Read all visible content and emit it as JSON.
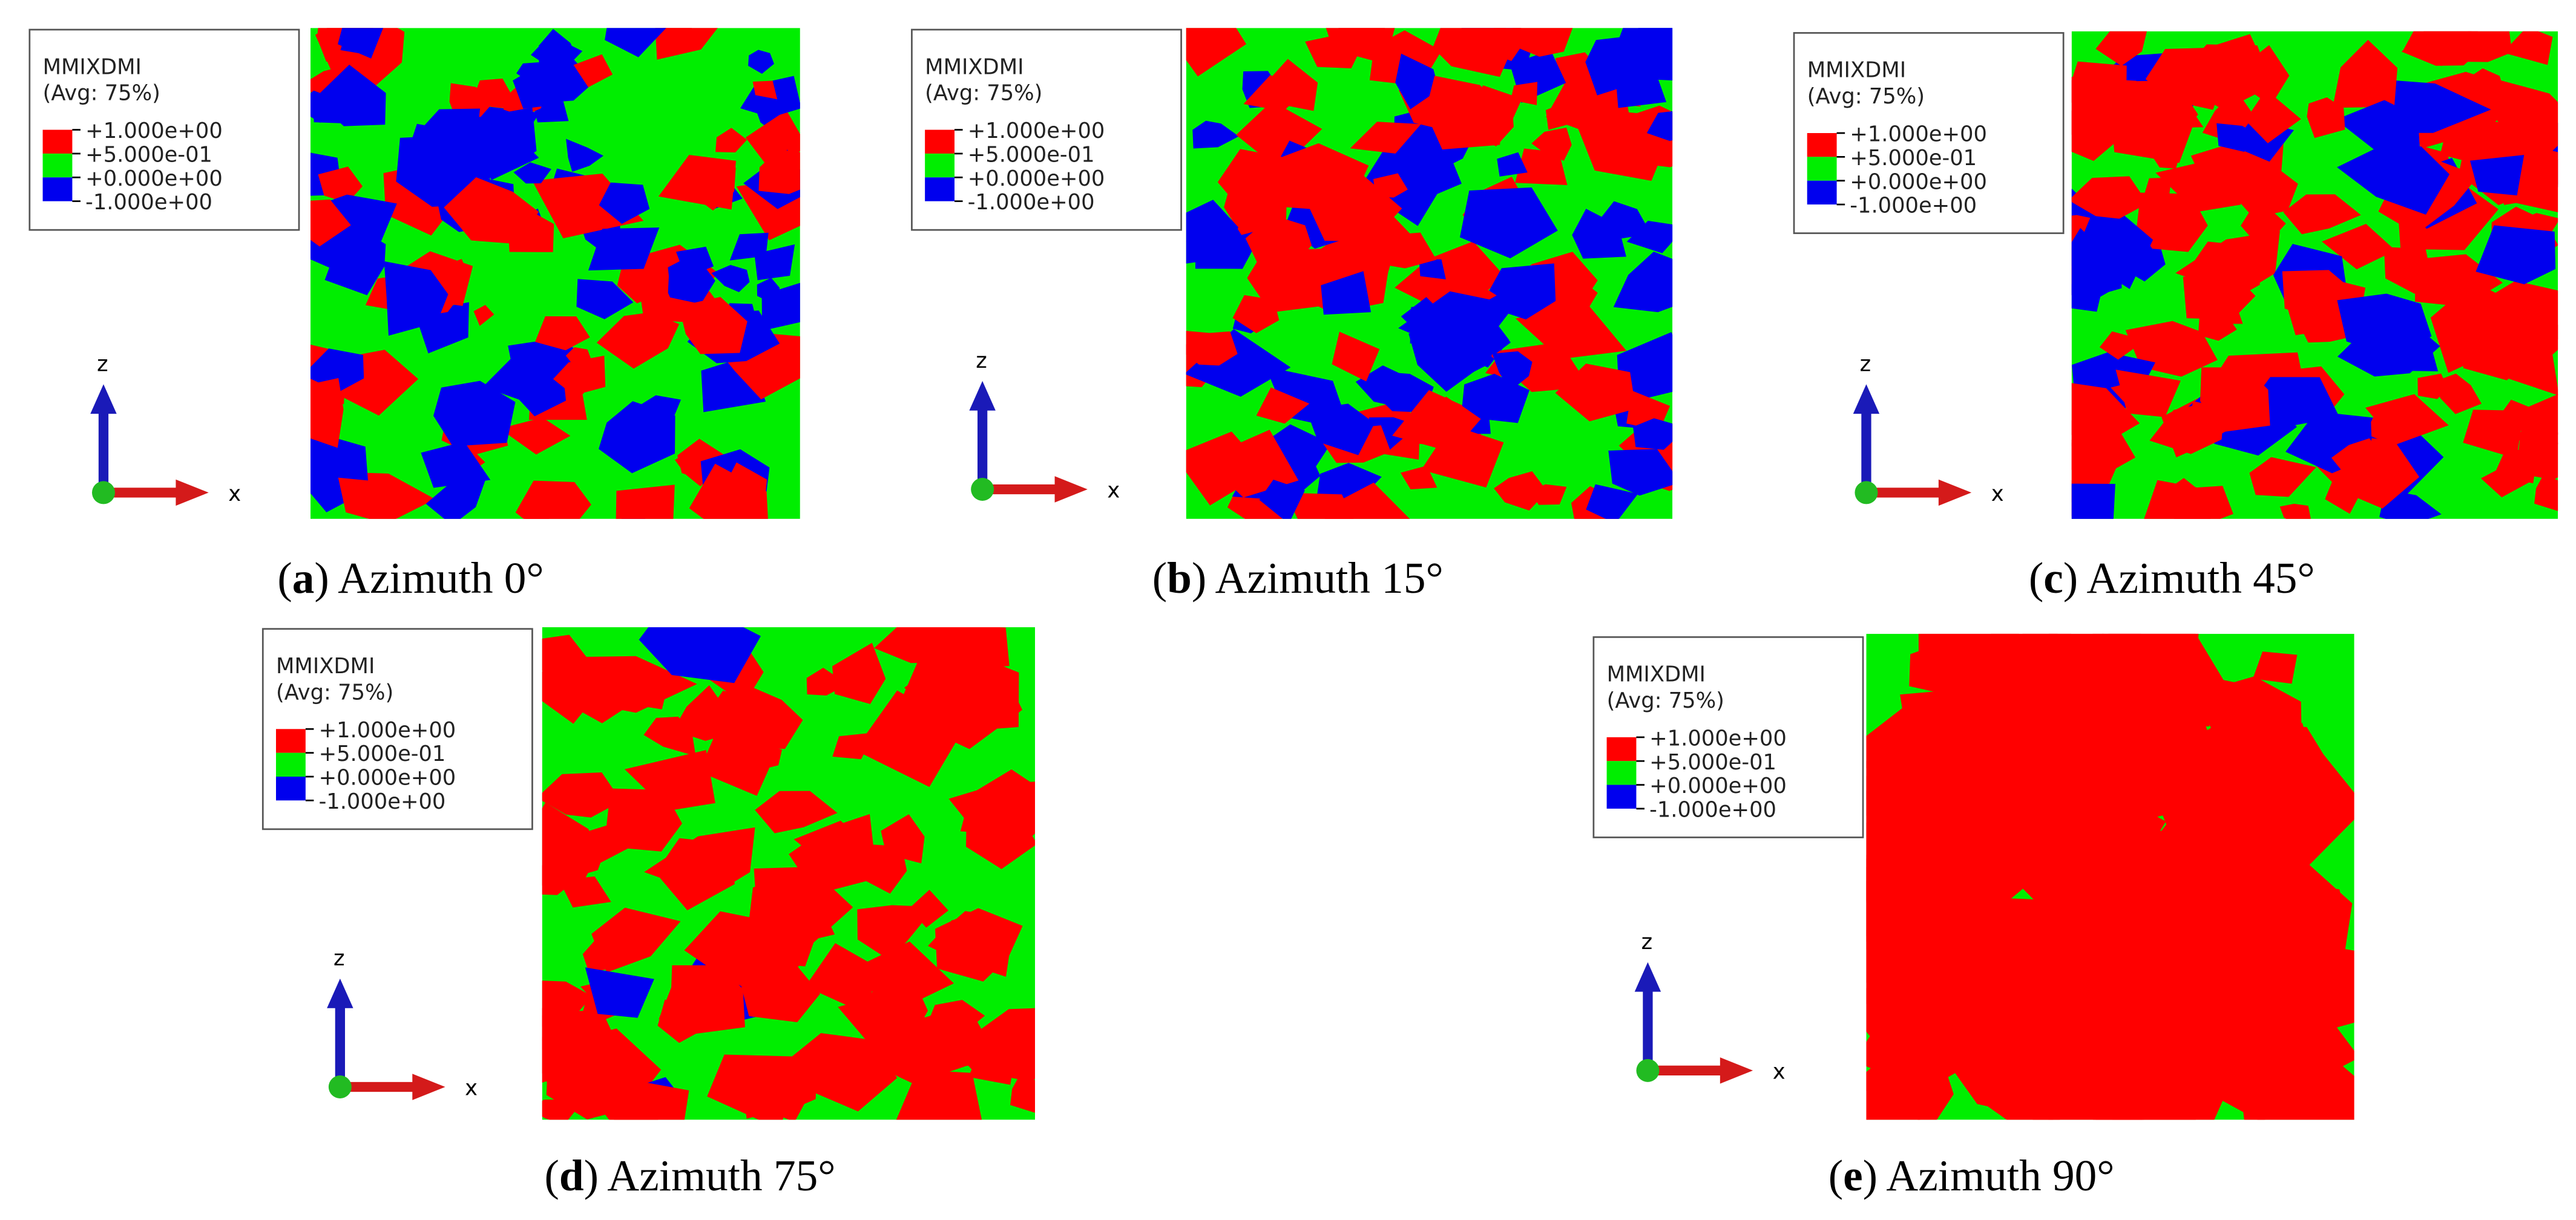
{
  "panels": [
    {
      "legend": {
        "title": "MMIXDMI",
        "subtitle": "(Avg: 75%)",
        "entries": [
          "+1.000e+00",
          "+5.000e-01",
          "+0.000e+00",
          "-1.000e+00"
        ]
      },
      "axes": {
        "vertical": "z",
        "horizontal": "x"
      },
      "caption": {
        "open": "(",
        "letter": "a",
        "text": ") Azimuth 0°"
      }
    },
    {
      "legend": {
        "title": "MMIXDMI",
        "subtitle": "(Avg: 75%)",
        "entries": [
          "+1.000e+00",
          "+5.000e-01",
          "+0.000e+00",
          "-1.000e+00"
        ]
      },
      "axes": {
        "vertical": "z",
        "horizontal": "x"
      },
      "caption": {
        "open": "(",
        "letter": "b",
        "text": ") Azimuth 15°"
      }
    },
    {
      "legend": {
        "title": "MMIXDMI",
        "subtitle": "(Avg: 75%)",
        "entries": [
          "+1.000e+00",
          "+5.000e-01",
          "+0.000e+00",
          "-1.000e+00"
        ]
      },
      "axes": {
        "vertical": "z",
        "horizontal": "x"
      },
      "caption": {
        "open": "(",
        "letter": "c",
        "text": ") Azimuth 45°"
      }
    },
    {
      "legend": {
        "title": "MMIXDMI",
        "subtitle": "(Avg: 75%)",
        "entries": [
          "+1.000e+00",
          "+5.000e-01",
          "+0.000e+00",
          "-1.000e+00"
        ]
      },
      "axes": {
        "vertical": "z",
        "horizontal": "x"
      },
      "caption": {
        "open": "(",
        "letter": "d",
        "text": ") Azimuth 75°"
      }
    },
    {
      "legend": {
        "title": "MMIXDMI",
        "subtitle": "(Avg: 75%)",
        "entries": [
          "+1.000e+00",
          "+5.000e-01",
          "+0.000e+00",
          "-1.000e+00"
        ]
      },
      "axes": {
        "vertical": "z",
        "horizontal": "x"
      },
      "caption": {
        "open": "(",
        "letter": "e",
        "text": ") Azimuth 90°"
      }
    }
  ]
}
